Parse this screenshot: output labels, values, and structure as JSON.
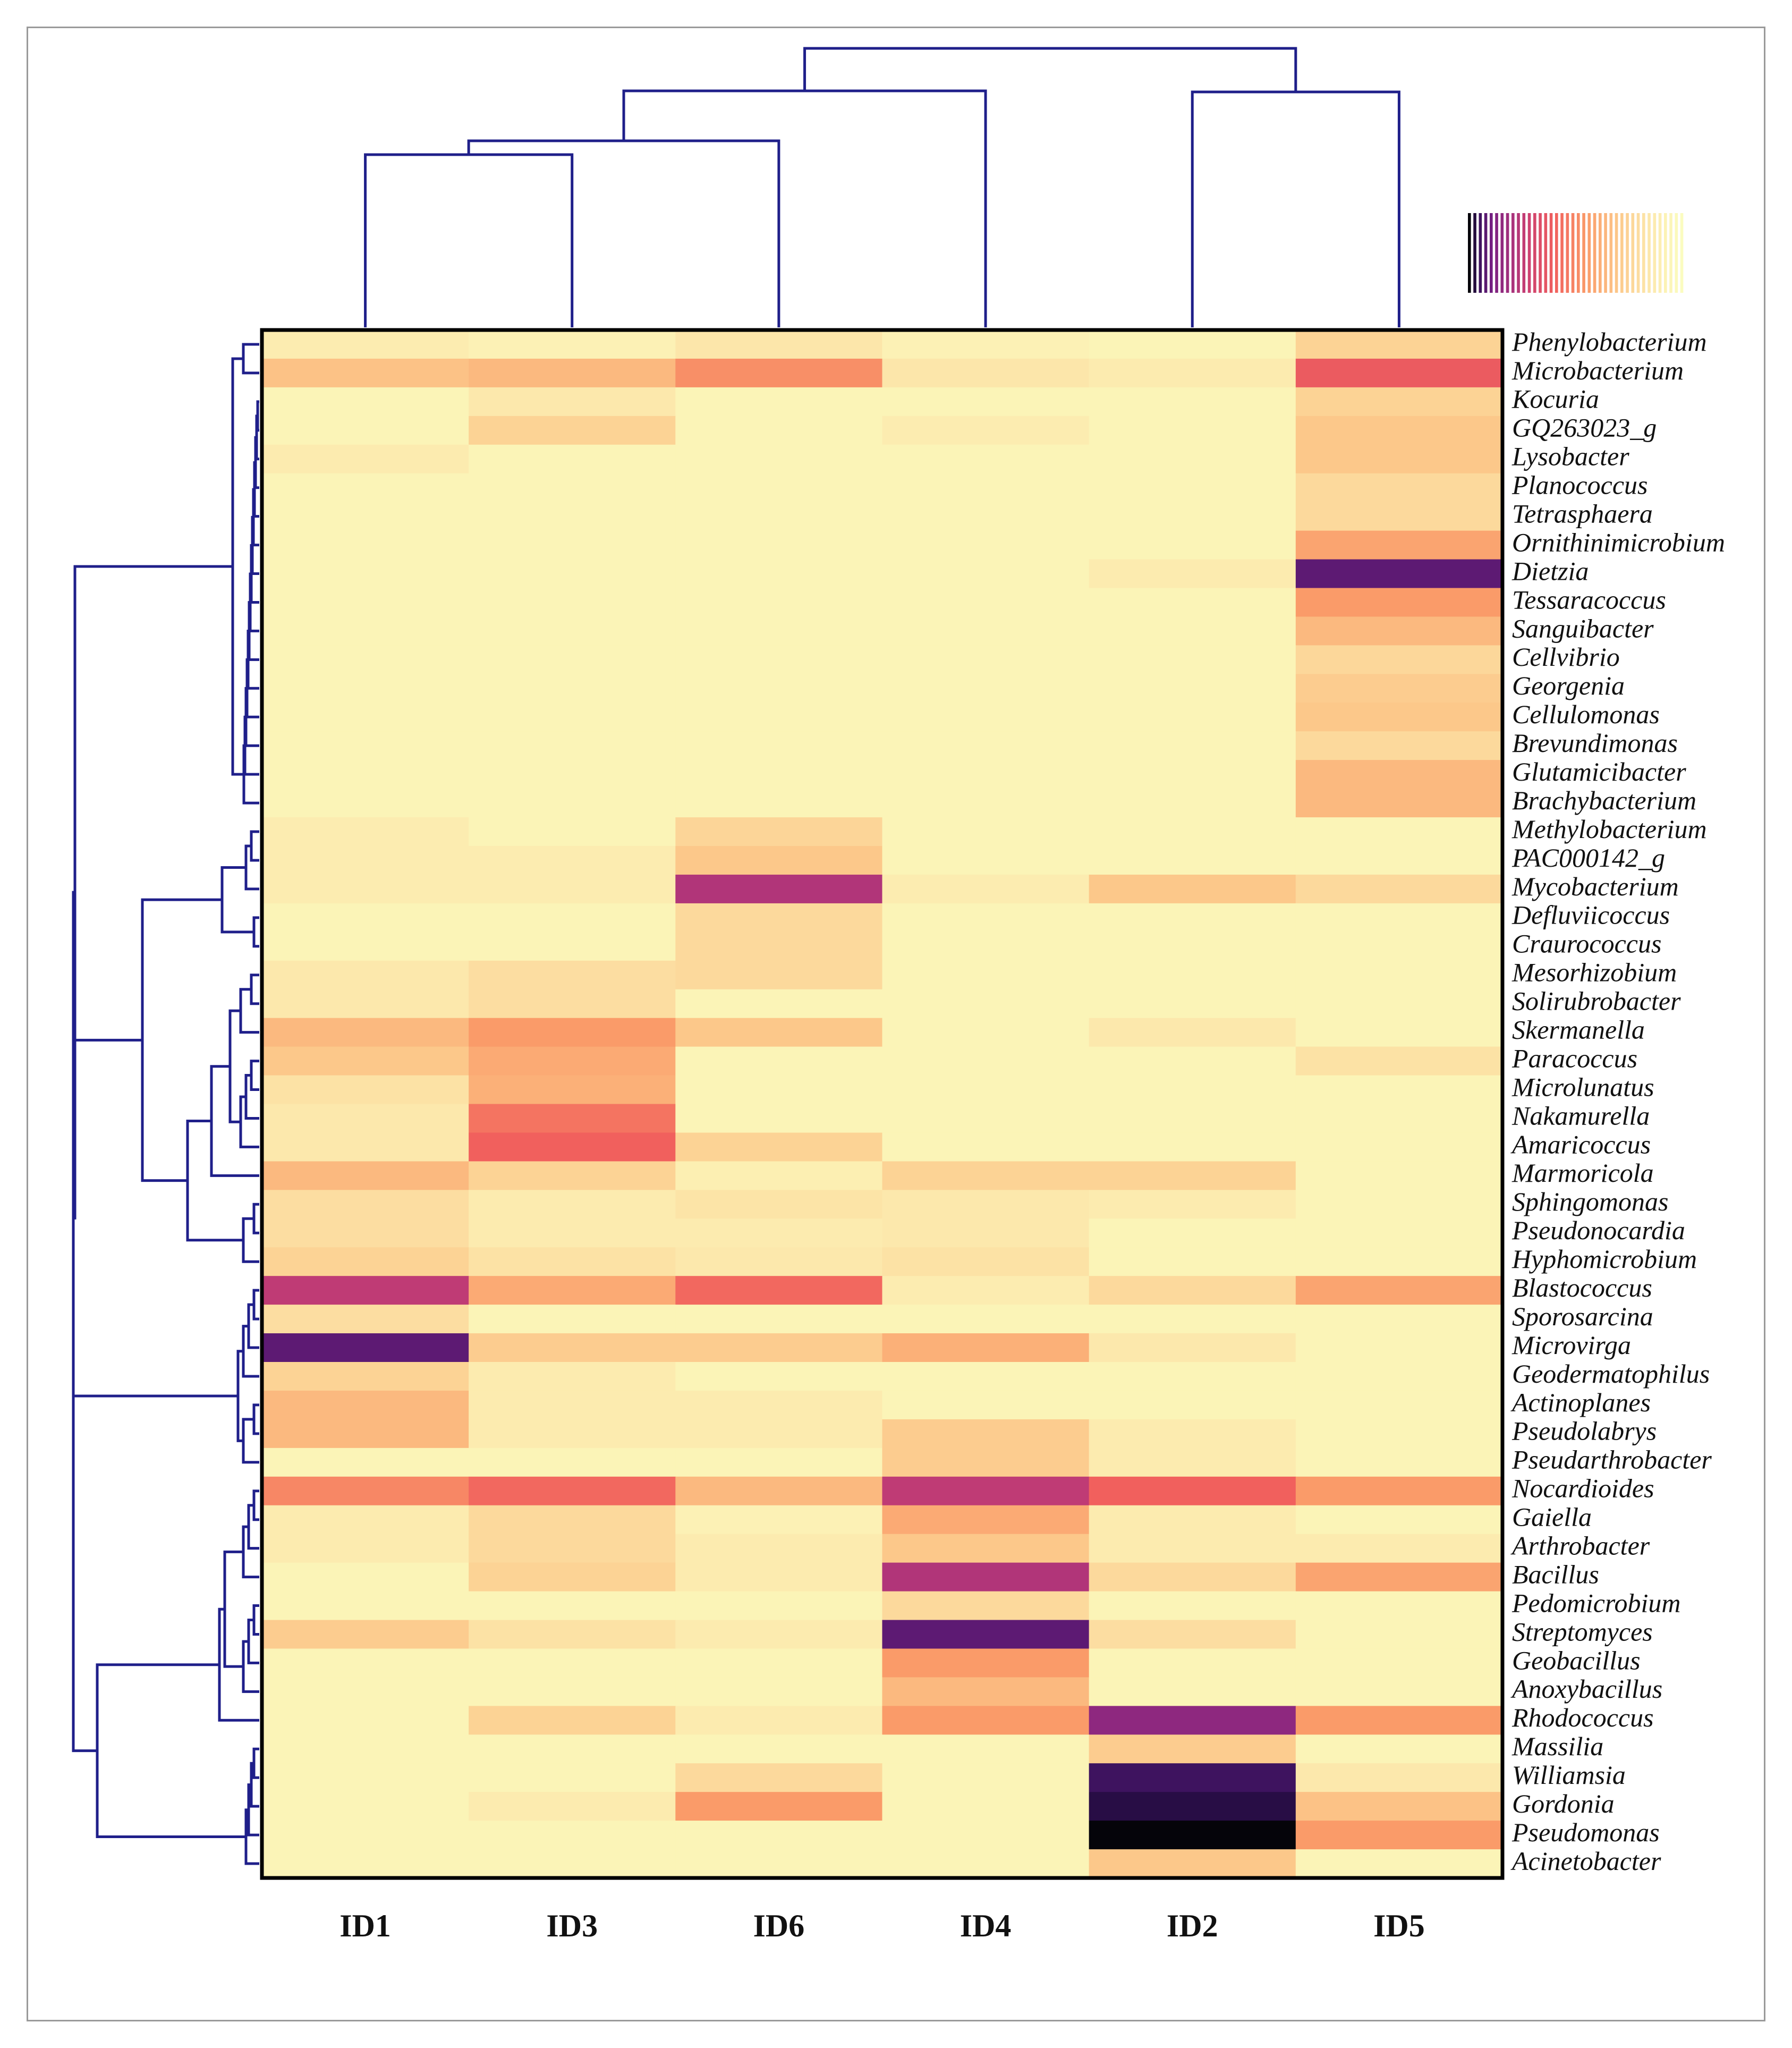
{
  "chart_data": {
    "type": "heatmap",
    "title": "",
    "columns": [
      "ID1",
      "ID3",
      "ID6",
      "ID4",
      "ID2",
      "ID5"
    ],
    "rows": [
      "Phenylobacterium",
      "Microbacterium",
      "Kocuria",
      "GQ263023_g",
      "Lysobacter",
      "Planococcus",
      "Tetrasphaera",
      "Ornithinimicrobium",
      "Dietzia",
      "Tessaracoccus",
      "Sanguibacter",
      "Cellvibrio",
      "Georgenia",
      "Cellulomonas",
      "Brevundimonas",
      "Glutamicibacter",
      "Brachybacterium",
      "Methylobacterium",
      "PAC000142_g",
      "Mycobacterium",
      "Defluviicoccus",
      "Craurococcus",
      "Mesorhizobium",
      "Solirubrobacter",
      "Skermanella",
      "Paracoccus",
      "Microlunatus",
      "Nakamurella",
      "Amaricoccus",
      "Marmoricola",
      "Sphingomonas",
      "Pseudonocardia",
      "Hyphomicrobium",
      "Blastococcus",
      "Sporosarcina",
      "Microvirga",
      "Geodermatophilus",
      "Actinoplanes",
      "Pseudolabrys",
      "Pseudarthrobacter",
      "Nocardioides",
      "Gaiella",
      "Arthrobacter",
      "Bacillus",
      "Pedomicrobium",
      "Streptomyces",
      "Geobacillus",
      "Anoxybacillus",
      "Rhodococcus",
      "Massilia",
      "Williamsia",
      "Gordonia",
      "Pseudomonas",
      "Acinetobacter"
    ],
    "value_range": [
      0,
      1
    ],
    "colormap": "magma (dark = high, pale = low)",
    "values": [
      [
        0.12,
        0.08,
        0.16,
        0.08,
        0.06,
        0.25
      ],
      [
        0.32,
        0.35,
        0.48,
        0.16,
        0.13,
        0.62
      ],
      [
        0.06,
        0.15,
        0.06,
        0.06,
        0.06,
        0.25
      ],
      [
        0.06,
        0.25,
        0.06,
        0.12,
        0.06,
        0.3
      ],
      [
        0.13,
        0.06,
        0.06,
        0.06,
        0.06,
        0.3
      ],
      [
        0.06,
        0.06,
        0.06,
        0.06,
        0.06,
        0.22
      ],
      [
        0.06,
        0.06,
        0.06,
        0.06,
        0.06,
        0.22
      ],
      [
        0.06,
        0.06,
        0.06,
        0.06,
        0.06,
        0.42
      ],
      [
        0.06,
        0.06,
        0.06,
        0.06,
        0.13,
        0.92
      ],
      [
        0.06,
        0.06,
        0.06,
        0.06,
        0.06,
        0.45
      ],
      [
        0.06,
        0.06,
        0.06,
        0.06,
        0.06,
        0.35
      ],
      [
        0.06,
        0.06,
        0.06,
        0.06,
        0.06,
        0.23
      ],
      [
        0.06,
        0.06,
        0.06,
        0.06,
        0.06,
        0.28
      ],
      [
        0.06,
        0.06,
        0.06,
        0.06,
        0.06,
        0.3
      ],
      [
        0.06,
        0.06,
        0.06,
        0.06,
        0.06,
        0.22
      ],
      [
        0.06,
        0.06,
        0.06,
        0.06,
        0.06,
        0.35
      ],
      [
        0.06,
        0.06,
        0.06,
        0.06,
        0.06,
        0.35
      ],
      [
        0.12,
        0.06,
        0.24,
        0.06,
        0.06,
        0.06
      ],
      [
        0.12,
        0.12,
        0.3,
        0.06,
        0.06,
        0.06
      ],
      [
        0.12,
        0.12,
        0.78,
        0.12,
        0.3,
        0.22
      ],
      [
        0.06,
        0.06,
        0.22,
        0.06,
        0.06,
        0.06
      ],
      [
        0.06,
        0.06,
        0.22,
        0.06,
        0.06,
        0.06
      ],
      [
        0.15,
        0.2,
        0.22,
        0.06,
        0.06,
        0.06
      ],
      [
        0.15,
        0.2,
        0.06,
        0.06,
        0.06,
        0.06
      ],
      [
        0.35,
        0.45,
        0.3,
        0.06,
        0.15,
        0.06
      ],
      [
        0.3,
        0.4,
        0.06,
        0.06,
        0.06,
        0.18
      ],
      [
        0.18,
        0.38,
        0.06,
        0.06,
        0.06,
        0.06
      ],
      [
        0.15,
        0.55,
        0.06,
        0.06,
        0.06,
        0.06
      ],
      [
        0.15,
        0.6,
        0.25,
        0.06,
        0.06,
        0.06
      ],
      [
        0.35,
        0.25,
        0.1,
        0.25,
        0.25,
        0.06
      ],
      [
        0.2,
        0.13,
        0.17,
        0.15,
        0.13,
        0.06
      ],
      [
        0.2,
        0.13,
        0.13,
        0.15,
        0.06,
        0.06
      ],
      [
        0.25,
        0.18,
        0.15,
        0.18,
        0.06,
        0.06
      ],
      [
        0.75,
        0.4,
        0.58,
        0.12,
        0.22,
        0.42
      ],
      [
        0.2,
        0.06,
        0.06,
        0.06,
        0.06,
        0.06
      ],
      [
        0.92,
        0.28,
        0.28,
        0.38,
        0.15,
        0.06
      ],
      [
        0.25,
        0.13,
        0.06,
        0.06,
        0.06,
        0.06
      ],
      [
        0.35,
        0.13,
        0.13,
        0.06,
        0.06,
        0.06
      ],
      [
        0.35,
        0.13,
        0.13,
        0.28,
        0.13,
        0.06
      ],
      [
        0.06,
        0.06,
        0.06,
        0.28,
        0.13,
        0.06
      ],
      [
        0.5,
        0.58,
        0.35,
        0.75,
        0.6,
        0.45
      ],
      [
        0.13,
        0.22,
        0.08,
        0.4,
        0.13,
        0.06
      ],
      [
        0.13,
        0.22,
        0.13,
        0.3,
        0.13,
        0.13
      ],
      [
        0.06,
        0.25,
        0.13,
        0.78,
        0.22,
        0.42
      ],
      [
        0.06,
        0.06,
        0.06,
        0.22,
        0.06,
        0.06
      ],
      [
        0.28,
        0.18,
        0.13,
        0.92,
        0.2,
        0.06
      ],
      [
        0.06,
        0.06,
        0.06,
        0.45,
        0.06,
        0.06
      ],
      [
        0.06,
        0.06,
        0.06,
        0.35,
        0.06,
        0.06
      ],
      [
        0.06,
        0.25,
        0.13,
        0.45,
        0.85,
        0.45
      ],
      [
        0.06,
        0.06,
        0.06,
        0.06,
        0.28,
        0.06
      ],
      [
        0.06,
        0.06,
        0.22,
        0.06,
        0.95,
        0.15
      ],
      [
        0.06,
        0.13,
        0.45,
        0.06,
        0.97,
        0.32
      ],
      [
        0.06,
        0.06,
        0.06,
        0.06,
        1.0,
        0.45
      ],
      [
        0.06,
        0.06,
        0.06,
        0.06,
        0.3,
        0.06
      ]
    ],
    "legend": "color scale bar, top-right, no tick labels"
  }
}
